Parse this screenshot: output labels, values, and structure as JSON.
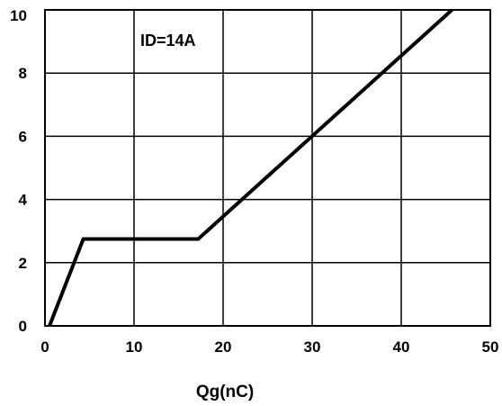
{
  "chart_data": {
    "type": "line",
    "xlabel": "Qg(nC)",
    "ylabel": "",
    "xlim": [
      0,
      50
    ],
    "ylim": [
      0,
      10
    ],
    "xticks": [
      "0",
      "10",
      "20",
      "30",
      "40",
      "50"
    ],
    "yticks": [
      "0",
      "2",
      "4",
      "6",
      "8",
      "10"
    ],
    "grid": true,
    "annotation": "ID=14A",
    "series": [
      {
        "x": [
          0.5,
          4.3,
          17.2,
          45.7
        ],
        "y": [
          0,
          2.75,
          2.75,
          10
        ]
      }
    ],
    "colors": {
      "line": "#000000",
      "grid": "#000000"
    }
  }
}
